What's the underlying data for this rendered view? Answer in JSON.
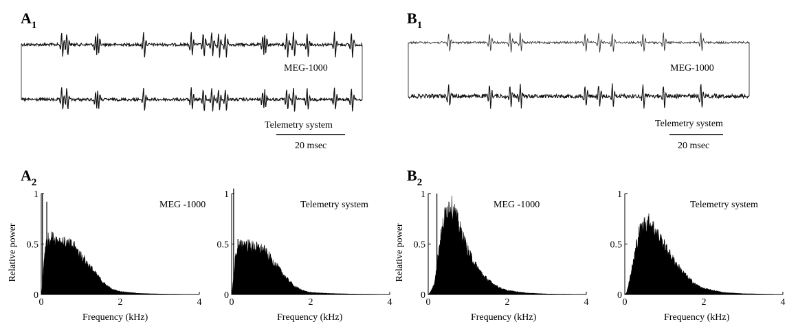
{
  "figure": {
    "panels": {
      "A1": {
        "letter": "A",
        "sub": "1"
      },
      "B1": {
        "letter": "B",
        "sub": "1"
      },
      "A2": {
        "letter": "A",
        "sub": "2"
      },
      "B2": {
        "letter": "B",
        "sub": "2"
      }
    },
    "traces": {
      "A": {
        "top_label": "MEG-1000",
        "bottom_label": "Telemetry system",
        "scalebar_label": "20 msec",
        "spike_times": [
          0.12,
          0.135,
          0.22,
          0.225,
          0.36,
          0.5,
          0.535,
          0.56,
          0.58,
          0.6,
          0.71,
          0.715,
          0.78,
          0.8,
          0.84,
          0.92,
          0.97
        ],
        "noise_amplitude": 2,
        "color": "#111111"
      },
      "B": {
        "top_label": "MEG-1000",
        "bottom_label": "Telemetry system",
        "scalebar_label": "20 msec",
        "spike_times": [
          0.12,
          0.24,
          0.3,
          0.33,
          0.52,
          0.56,
          0.6,
          0.69,
          0.75,
          0.86
        ],
        "top_noise_amplitude": 1.5,
        "bottom_noise_amplitude": 3,
        "color": "#222222"
      }
    }
  },
  "chart_data": [
    {
      "type": "bar",
      "panel": "A2-left",
      "title": "MEG -1000",
      "xlabel": "Frequency (kHz)",
      "ylabel": "Relative power",
      "xlim": [
        0,
        4
      ],
      "ylim": [
        0,
        1
      ],
      "xticks": [
        "0",
        "2",
        "4"
      ],
      "yticks": [
        "0",
        "0.5",
        "1"
      ],
      "spikes": [
        {
          "x": 0.03,
          "y": 1.0
        },
        {
          "x": 0.14,
          "y": 0.92
        }
      ],
      "envelope": [
        [
          0.02,
          0.05
        ],
        [
          0.1,
          0.5
        ],
        [
          0.2,
          0.58
        ],
        [
          0.4,
          0.56
        ],
        [
          0.6,
          0.52
        ],
        [
          0.8,
          0.5
        ],
        [
          1.0,
          0.4
        ],
        [
          1.2,
          0.3
        ],
        [
          1.4,
          0.2
        ],
        [
          1.6,
          0.11
        ],
        [
          1.8,
          0.05
        ],
        [
          2.0,
          0.03
        ],
        [
          2.5,
          0.01
        ],
        [
          3.0,
          0.005
        ],
        [
          3.5,
          0.002
        ],
        [
          4.0,
          0.0
        ]
      ]
    },
    {
      "type": "bar",
      "panel": "A2-right",
      "title": "Telemetry system",
      "xlabel": "Frequency (kHz)",
      "ylabel": "",
      "xlim": [
        0,
        4
      ],
      "ylim": [
        0,
        1
      ],
      "xticks": [
        "0",
        "2",
        "4"
      ],
      "yticks": [
        "0",
        "0.5",
        "1"
      ],
      "spikes": [
        {
          "x": 0.05,
          "y": 1.05
        },
        {
          "x": 0.16,
          "y": 0.55
        }
      ],
      "envelope": [
        [
          0.02,
          0.05
        ],
        [
          0.1,
          0.4
        ],
        [
          0.25,
          0.52
        ],
        [
          0.45,
          0.5
        ],
        [
          0.6,
          0.48
        ],
        [
          0.8,
          0.46
        ],
        [
          1.0,
          0.36
        ],
        [
          1.2,
          0.26
        ],
        [
          1.4,
          0.16
        ],
        [
          1.6,
          0.08
        ],
        [
          1.8,
          0.04
        ],
        [
          2.0,
          0.02
        ],
        [
          2.5,
          0.01
        ],
        [
          3.0,
          0.005
        ],
        [
          4.0,
          0.0
        ]
      ]
    },
    {
      "type": "bar",
      "panel": "B2-left",
      "title": "MEG -1000",
      "xlabel": "Frequency (kHz)",
      "ylabel": "Relative power",
      "xlim": [
        0,
        4
      ],
      "ylim": [
        0,
        1
      ],
      "xticks": [
        "0",
        "2",
        "4"
      ],
      "yticks": [
        "0",
        "0.5",
        "1"
      ],
      "spikes": [
        {
          "x": 0.22,
          "y": 1.0
        }
      ],
      "envelope": [
        [
          0.05,
          0.02
        ],
        [
          0.15,
          0.1
        ],
        [
          0.3,
          0.55
        ],
        [
          0.45,
          0.86
        ],
        [
          0.55,
          0.92
        ],
        [
          0.65,
          0.86
        ],
        [
          0.8,
          0.68
        ],
        [
          1.0,
          0.45
        ],
        [
          1.2,
          0.3
        ],
        [
          1.4,
          0.19
        ],
        [
          1.6,
          0.12
        ],
        [
          1.8,
          0.07
        ],
        [
          2.0,
          0.04
        ],
        [
          2.5,
          0.015
        ],
        [
          3.0,
          0.005
        ],
        [
          4.0,
          0.0
        ]
      ]
    },
    {
      "type": "bar",
      "panel": "B2-right",
      "title": "Telemetry system",
      "xlabel": "Frequency (kHz)",
      "ylabel": "",
      "xlim": [
        0,
        4
      ],
      "ylim": [
        0,
        1
      ],
      "xticks": [
        "0",
        "2",
        "4"
      ],
      "yticks": [
        "0",
        "0.5",
        "1"
      ],
      "spikes": [],
      "envelope": [
        [
          0.05,
          0.02
        ],
        [
          0.2,
          0.3
        ],
        [
          0.35,
          0.62
        ],
        [
          0.5,
          0.72
        ],
        [
          0.6,
          0.74
        ],
        [
          0.7,
          0.7
        ],
        [
          0.85,
          0.6
        ],
        [
          1.0,
          0.5
        ],
        [
          1.2,
          0.37
        ],
        [
          1.4,
          0.26
        ],
        [
          1.6,
          0.17
        ],
        [
          1.8,
          0.1
        ],
        [
          2.0,
          0.06
        ],
        [
          2.5,
          0.02
        ],
        [
          3.0,
          0.008
        ],
        [
          4.0,
          0.0
        ]
      ]
    }
  ]
}
